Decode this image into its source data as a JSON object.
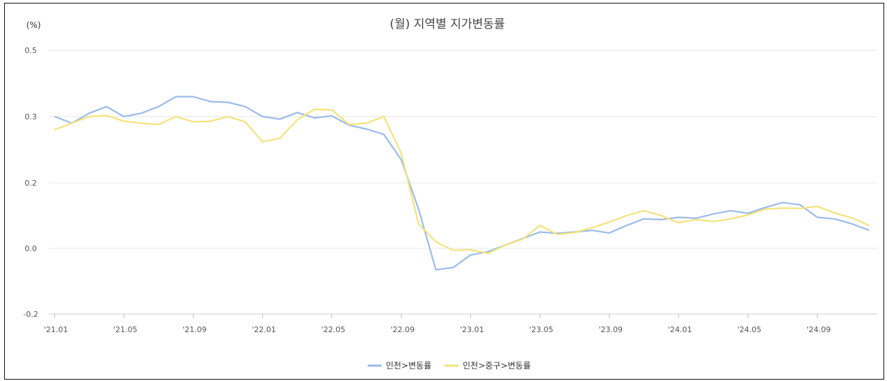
{
  "chart_data": {
    "type": "line",
    "title": "(월) 지역별 지가변동률",
    "unit_label": "(%)",
    "ylabel": "",
    "xlabel": "",
    "ylim": [
      -0.2,
      0.5
    ],
    "y_ticks": [
      "0.5",
      "0.3",
      "0.2",
      "0.0",
      "-0.2"
    ],
    "x_tick_labels": [
      "'21.01",
      "'21.05",
      "'21.09",
      "'22.01",
      "'22.05",
      "'22.09",
      "'23.01",
      "'23.05",
      "'23.09",
      "'24.01",
      "'24.05",
      "'24.09"
    ],
    "x_tick_every": 4,
    "grid": true,
    "legend_position": "bottom",
    "series": [
      {
        "name": "인천>변동률",
        "color": "#9bbbea",
        "values": [
          0.3,
          0.29,
          0.31,
          0.33,
          0.3,
          0.31,
          0.33,
          0.36,
          0.36,
          0.345,
          0.343,
          0.33,
          0.3,
          0.296,
          0.312,
          0.298,
          0.302,
          0.287,
          0.281,
          0.273,
          0.235,
          0.12,
          -0.065,
          -0.058,
          -0.02,
          -0.01,
          0.01,
          0.03,
          0.05,
          0.046,
          0.05,
          0.055,
          0.047,
          0.07,
          0.09,
          0.088,
          0.095,
          0.092,
          0.105,
          0.115,
          0.107,
          0.125,
          0.14,
          0.133,
          0.095,
          0.09,
          0.075,
          0.055
        ]
      },
      {
        "name": "인천>중구>변동률",
        "color": "#f5e27a",
        "values": [
          0.28,
          0.29,
          0.3,
          0.303,
          0.293,
          0.29,
          0.288,
          0.3,
          0.292,
          0.293,
          0.3,
          0.292,
          0.262,
          0.267,
          0.295,
          0.322,
          0.32,
          0.288,
          0.29,
          0.3,
          0.245,
          0.075,
          0.02,
          -0.006,
          -0.004,
          -0.015,
          0.01,
          0.028,
          0.07,
          0.043,
          0.048,
          0.063,
          0.08,
          0.1,
          0.115,
          0.1,
          0.078,
          0.088,
          0.082,
          0.09,
          0.102,
          0.12,
          0.123,
          0.122,
          0.128,
          0.108,
          0.093,
          0.07
        ]
      }
    ]
  }
}
